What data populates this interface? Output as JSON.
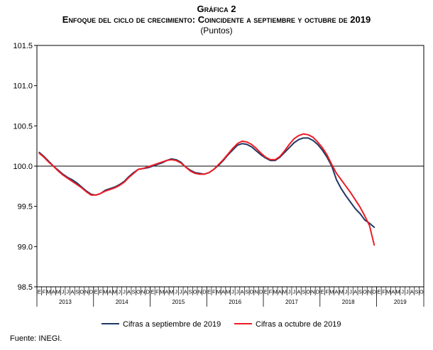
{
  "title": "Gráfica 2",
  "subtitle": "Enfoque del ciclo de crecimiento: Coincidente a septiembre y octubre de 2019",
  "units": "(Puntos)",
  "source": "Fuente: INEGI.",
  "chart_data": {
    "type": "line",
    "ylim": [
      98.5,
      101.5
    ],
    "yticks": [
      "101.5",
      "101.0",
      "100.5",
      "100.0",
      "99.5",
      "99.0",
      "98.5"
    ],
    "reference_line": 100.0,
    "grid": false,
    "legend_position": "bottom",
    "month_labels": [
      "E",
      "F",
      "M",
      "A",
      "M",
      "J",
      "J",
      "A",
      "S",
      "O",
      "N",
      "D"
    ],
    "years": [
      "2013",
      "2014",
      "2015",
      "2016",
      "2017",
      "2018",
      "2019"
    ],
    "last_year_months": 10,
    "series": [
      {
        "name": "Cifras a septiembre de 2019",
        "color": "#1f3864",
        "values": [
          100.17,
          100.12,
          100.06,
          100.0,
          99.95,
          99.9,
          99.86,
          99.83,
          99.79,
          99.74,
          99.69,
          99.65,
          99.64,
          99.66,
          99.7,
          99.72,
          99.74,
          99.77,
          99.81,
          99.87,
          99.92,
          99.96,
          99.97,
          99.98,
          100.0,
          100.02,
          100.04,
          100.07,
          100.09,
          100.08,
          100.05,
          99.99,
          99.95,
          99.92,
          99.91,
          99.9,
          99.92,
          99.96,
          100.01,
          100.07,
          100.14,
          100.2,
          100.26,
          100.28,
          100.27,
          100.24,
          100.19,
          100.14,
          100.1,
          100.07,
          100.07,
          100.11,
          100.17,
          100.23,
          100.29,
          100.33,
          100.35,
          100.35,
          100.32,
          100.27,
          100.2,
          100.11,
          100.0,
          99.83,
          99.72,
          99.63,
          99.55,
          99.47,
          99.41,
          99.33,
          99.29,
          99.24
        ]
      },
      {
        "name": "Cifras a octubre de 2019",
        "color": "#ee1c25",
        "values": [
          100.16,
          100.11,
          100.05,
          100.0,
          99.94,
          99.89,
          99.85,
          99.81,
          99.77,
          99.73,
          99.68,
          99.64,
          99.64,
          99.66,
          99.69,
          99.71,
          99.73,
          99.76,
          99.8,
          99.86,
          99.91,
          99.96,
          99.97,
          99.99,
          100.01,
          100.03,
          100.05,
          100.07,
          100.08,
          100.07,
          100.04,
          99.99,
          99.94,
          99.91,
          99.9,
          99.9,
          99.92,
          99.96,
          100.02,
          100.08,
          100.15,
          100.22,
          100.28,
          100.31,
          100.3,
          100.27,
          100.22,
          100.16,
          100.11,
          100.08,
          100.08,
          100.12,
          100.19,
          100.27,
          100.34,
          100.38,
          100.4,
          100.39,
          100.36,
          100.3,
          100.23,
          100.14,
          100.02,
          99.91,
          99.83,
          99.75,
          99.67,
          99.58,
          99.49,
          99.38,
          99.26,
          99.02
        ]
      }
    ]
  }
}
